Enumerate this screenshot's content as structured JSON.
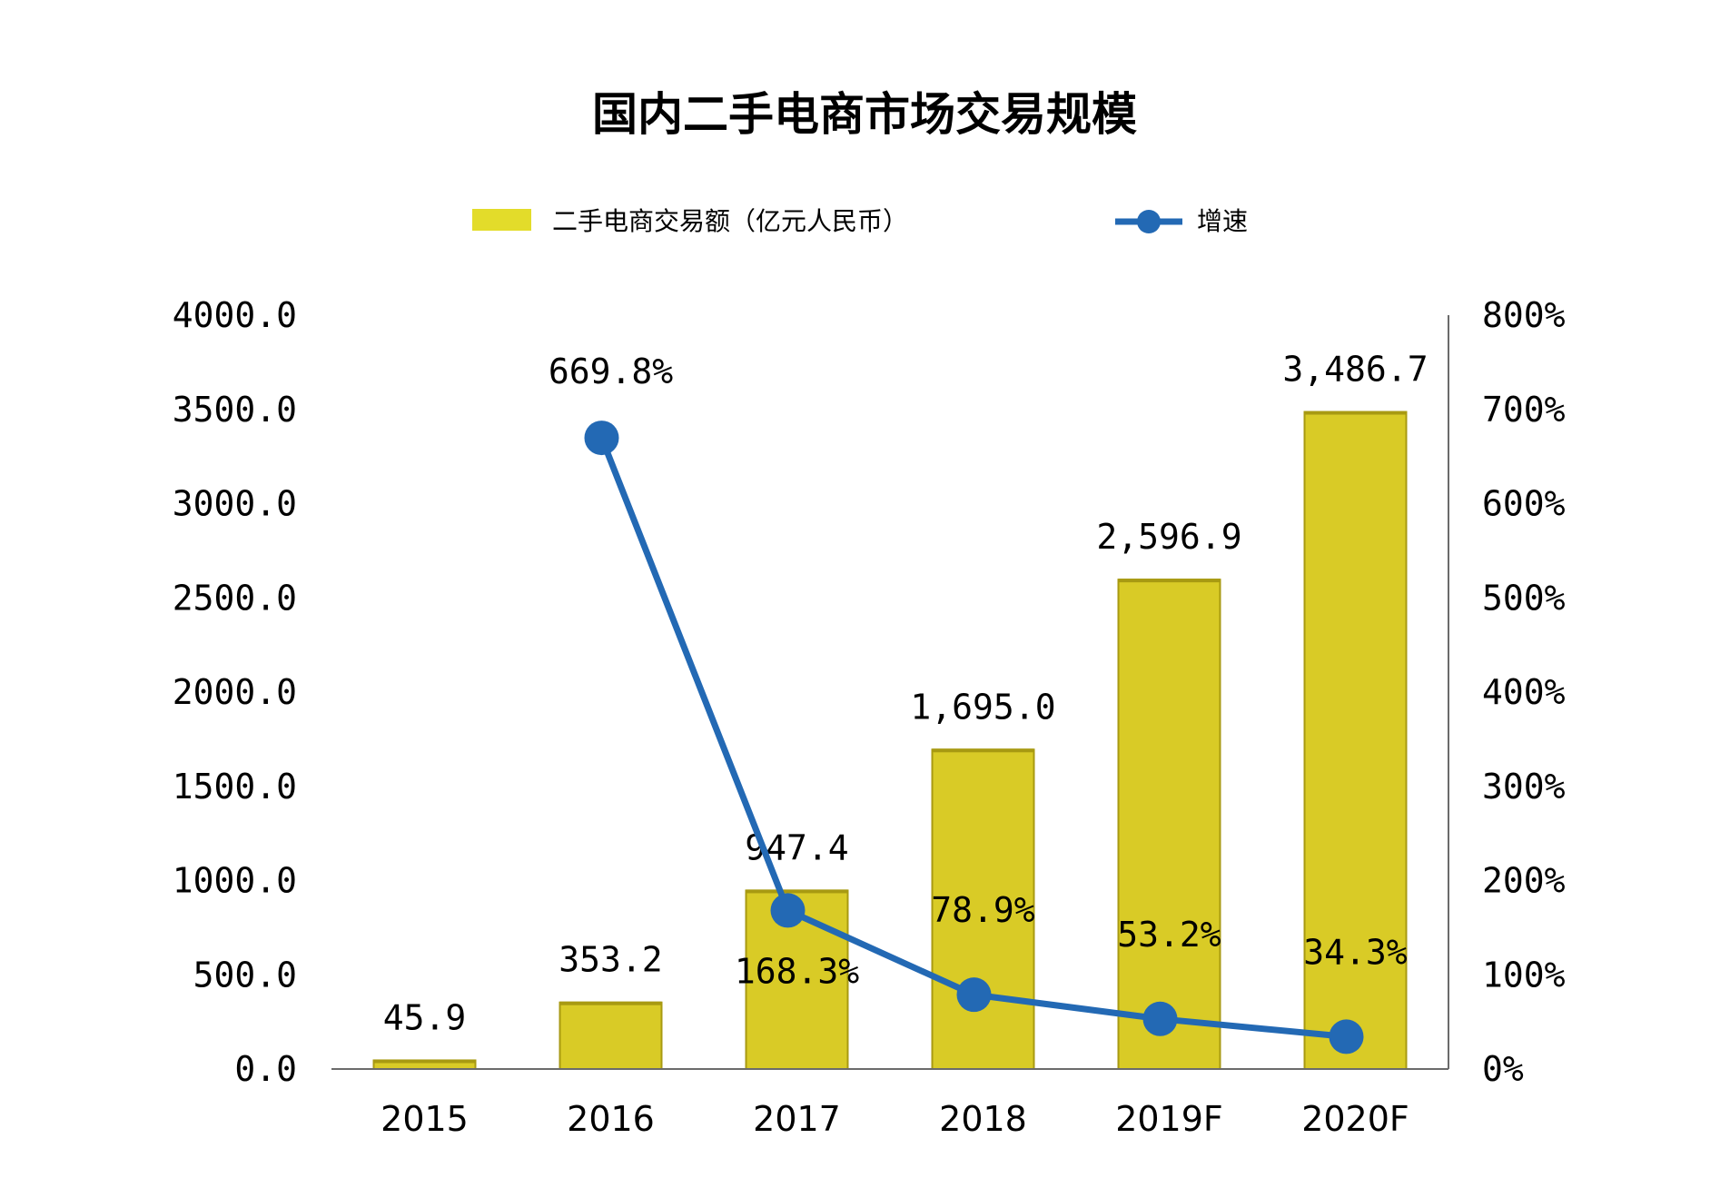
{
  "chart_data": {
    "type": "bar",
    "title": "国内二手电商市场交易规模",
    "categories": [
      "2015",
      "2016",
      "2017",
      "2018",
      "2019F",
      "2020F"
    ],
    "series": [
      {
        "name": "二手电商交易额（亿元人民币）",
        "type": "bar",
        "axis": "left",
        "values": [
          45.9,
          353.2,
          947.4,
          1695.0,
          2596.9,
          3486.7
        ],
        "labels": [
          "45.9",
          "353.2",
          "947.4",
          "1,695.0",
          "2,596.9",
          "3,486.7"
        ],
        "color": "#D9CB26"
      },
      {
        "name": "增速",
        "type": "line",
        "axis": "right",
        "values": [
          null,
          669.8,
          168.3,
          78.9,
          53.2,
          34.3
        ],
        "labels": [
          "",
          "669.8%",
          "168.3%",
          "78.9%",
          "53.2%",
          "34.3%"
        ],
        "color": "#2369B4"
      }
    ],
    "y_left": {
      "ylim": [
        0,
        4000
      ],
      "ticks": [
        "0.0",
        "500.0",
        "1000.0",
        "1500.0",
        "2000.0",
        "2500.0",
        "3000.0",
        "3500.0",
        "4000.0"
      ]
    },
    "y_right": {
      "ylim": [
        0,
        800
      ],
      "ticks": [
        "0%",
        "100%",
        "200%",
        "300%",
        "400%",
        "500%",
        "600%",
        "700%",
        "800%"
      ]
    },
    "legend_position": "top",
    "grid": false
  }
}
